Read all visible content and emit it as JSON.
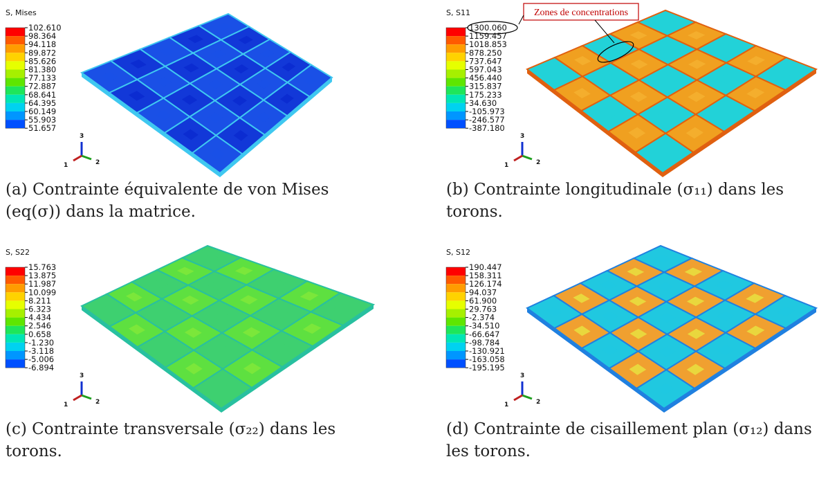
{
  "panels": [
    {
      "legend_title": "S, Mises",
      "legend_values": [
        "102.610",
        "98.364",
        "94.118",
        "89.872",
        "85.626",
        "81.380",
        "77.133",
        "72.887",
        "68.641",
        "64.395",
        "60.149",
        "55.903",
        "51.657"
      ],
      "caption": "(a) Contrainte équivalente de von Mises (eq(σ)) dans la matrice."
    },
    {
      "legend_title": "S, S11",
      "legend_values": [
        "1300.060",
        "1159.457",
        "1018.853",
        "878.250",
        "737.647",
        "597.043",
        "456.440",
        "315.837",
        "175.233",
        "34.630",
        "-105.973",
        "-246.577",
        "-387.180"
      ],
      "caption": "(b) Contrainte longitudinale (σ₁₁) dans les torons.",
      "annotation": "Zones de concentrations"
    },
    {
      "legend_title": "S, S22",
      "legend_values": [
        "15.763",
        "13.875",
        "11.987",
        "10.099",
        "8.211",
        "6.323",
        "4.434",
        "2.546",
        "0.658",
        "-1.230",
        "-3.118",
        "-5.006",
        "-6.894"
      ],
      "caption": "(c) Contrainte transversale (σ₂₂) dans les torons."
    },
    {
      "legend_title": "S, S12",
      "legend_values": [
        "190.447",
        "158.311",
        "126.174",
        "94.037",
        "61.900",
        "29.763",
        "-2.374",
        "-34.510",
        "-66.647",
        "-98.784",
        "-130.921",
        "-163.058",
        "-195.195"
      ],
      "caption": "(d) Contrainte de cisaillement plan (σ₁₂) dans les torons."
    }
  ],
  "triad_labels": [
    "1",
    "2",
    "3"
  ]
}
